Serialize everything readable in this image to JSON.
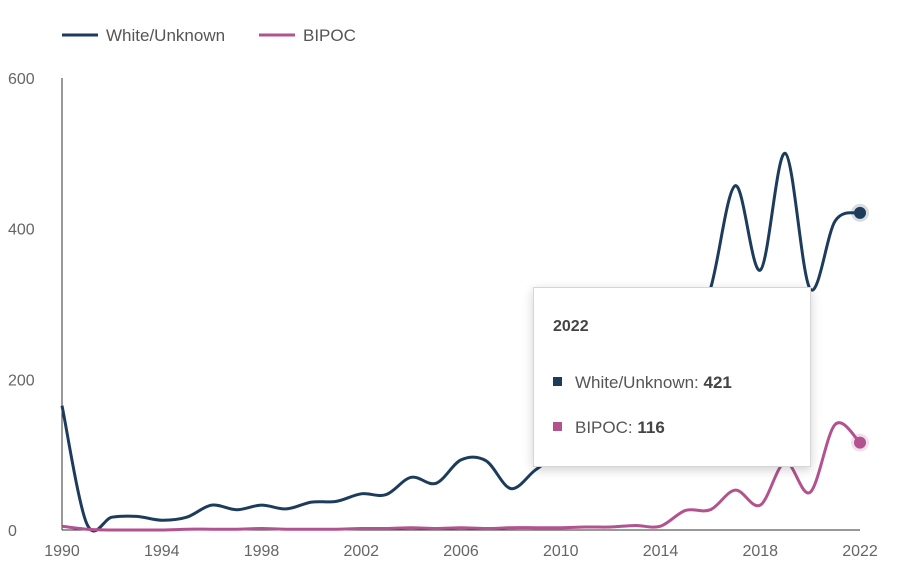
{
  "chart_data": {
    "type": "line",
    "x": [
      1990,
      1991,
      1992,
      1993,
      1994,
      1995,
      1996,
      1997,
      1998,
      1999,
      2000,
      2001,
      2002,
      2003,
      2004,
      2005,
      2006,
      2007,
      2008,
      2009,
      2010,
      2011,
      2012,
      2013,
      2014,
      2015,
      2016,
      2017,
      2018,
      2019,
      2020,
      2021,
      2022
    ],
    "series": [
      {
        "name": "White/Unknown",
        "color": "#1d3c5c",
        "values": [
          165,
          8,
          17,
          18,
          13,
          17,
          33,
          27,
          33,
          28,
          37,
          38,
          48,
          47,
          70,
          62,
          93,
          92,
          55,
          80,
          100,
          90,
          110,
          160,
          210,
          250,
          320,
          457,
          345,
          500,
          320,
          410,
          421
        ]
      },
      {
        "name": "BIPOC",
        "color": "#b2528f",
        "values": [
          5,
          1,
          0,
          0,
          0,
          1,
          1,
          1,
          2,
          1,
          1,
          1,
          2,
          2,
          3,
          2,
          3,
          2,
          3,
          3,
          3,
          4,
          4,
          6,
          5,
          26,
          27,
          53,
          33,
          90,
          50,
          140,
          116
        ]
      }
    ],
    "xticks": [
      "1990",
      "1994",
      "1998",
      "2002",
      "2006",
      "2010",
      "2014",
      "2018",
      "2022"
    ],
    "yticks": [
      "0",
      "200",
      "400",
      "600"
    ],
    "ylim": [
      0,
      600
    ],
    "xlim": [
      1990,
      2022
    ],
    "legend_position": "top-left",
    "grid": false
  },
  "tooltip": {
    "year": "2022",
    "rows": [
      {
        "label": "White/Unknown: ",
        "value": "421",
        "color": "#1d3c5c"
      },
      {
        "label": "BIPOC: ",
        "value": "116",
        "color": "#b2528f"
      }
    ]
  }
}
